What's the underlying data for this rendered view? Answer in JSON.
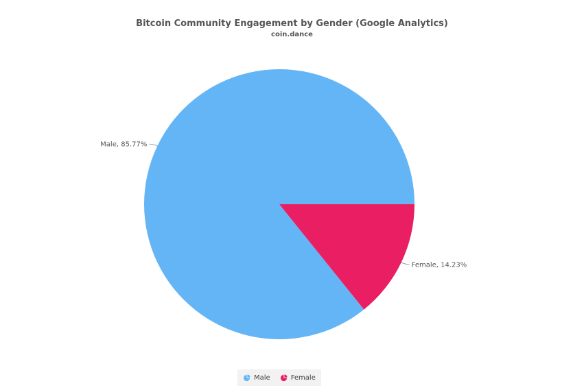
{
  "chart_data": {
    "type": "pie",
    "title": "Bitcoin Community Engagement by Gender (Google Analytics)",
    "subtitle": "coin.dance",
    "categories": [
      "Male",
      "Female"
    ],
    "values": [
      85.77,
      14.23
    ],
    "data_labels": [
      "Male, 85.77%",
      "Female, 14.23%"
    ],
    "colors": [
      "#64b5f6",
      "#e91e63"
    ],
    "legend": {
      "position": "bottom-center",
      "entries": [
        "Male",
        "Female"
      ]
    }
  }
}
